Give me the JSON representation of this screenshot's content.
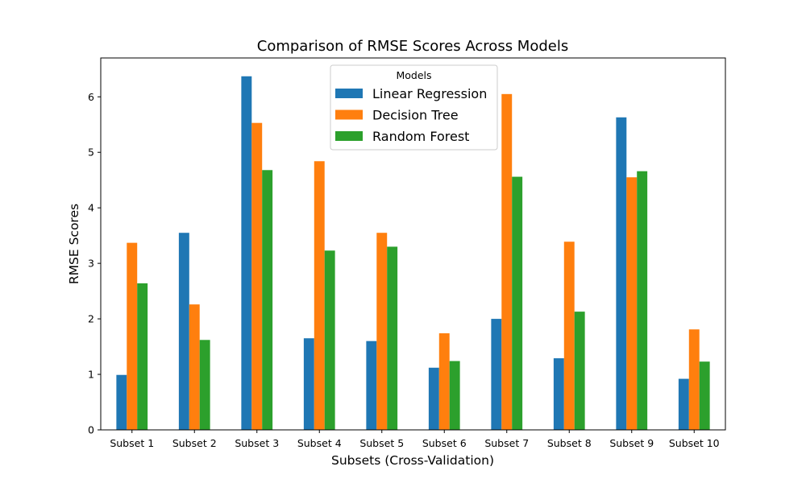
{
  "chart_data": {
    "type": "bar",
    "title": "Comparison of RMSE Scores Across Models",
    "xlabel": "Subsets (Cross-Validation)",
    "ylabel": "RMSE Scores",
    "ylim": [
      0,
      6.7
    ],
    "yticks": [
      0,
      1,
      2,
      3,
      4,
      5,
      6
    ],
    "grid": false,
    "legend": {
      "title": "Models",
      "placement": "top-center"
    },
    "categories": [
      "Subset 1",
      "Subset 2",
      "Subset 3",
      "Subset 4",
      "Subset 5",
      "Subset 6",
      "Subset 7",
      "Subset 8",
      "Subset 9",
      "Subset 10"
    ],
    "series": [
      {
        "name": "Linear Regression",
        "color": "#1f77b4",
        "values": [
          0.99,
          3.55,
          6.37,
          1.65,
          1.6,
          1.12,
          2.0,
          1.29,
          5.63,
          0.92
        ]
      },
      {
        "name": "Decision Tree",
        "color": "#ff7f0e",
        "values": [
          3.37,
          2.26,
          5.53,
          4.84,
          3.55,
          1.74,
          6.05,
          3.39,
          4.55,
          1.81
        ]
      },
      {
        "name": "Random Forest",
        "color": "#2ca02c",
        "values": [
          2.64,
          1.62,
          4.68,
          3.23,
          3.3,
          1.24,
          4.56,
          2.13,
          4.66,
          1.23
        ]
      }
    ]
  }
}
